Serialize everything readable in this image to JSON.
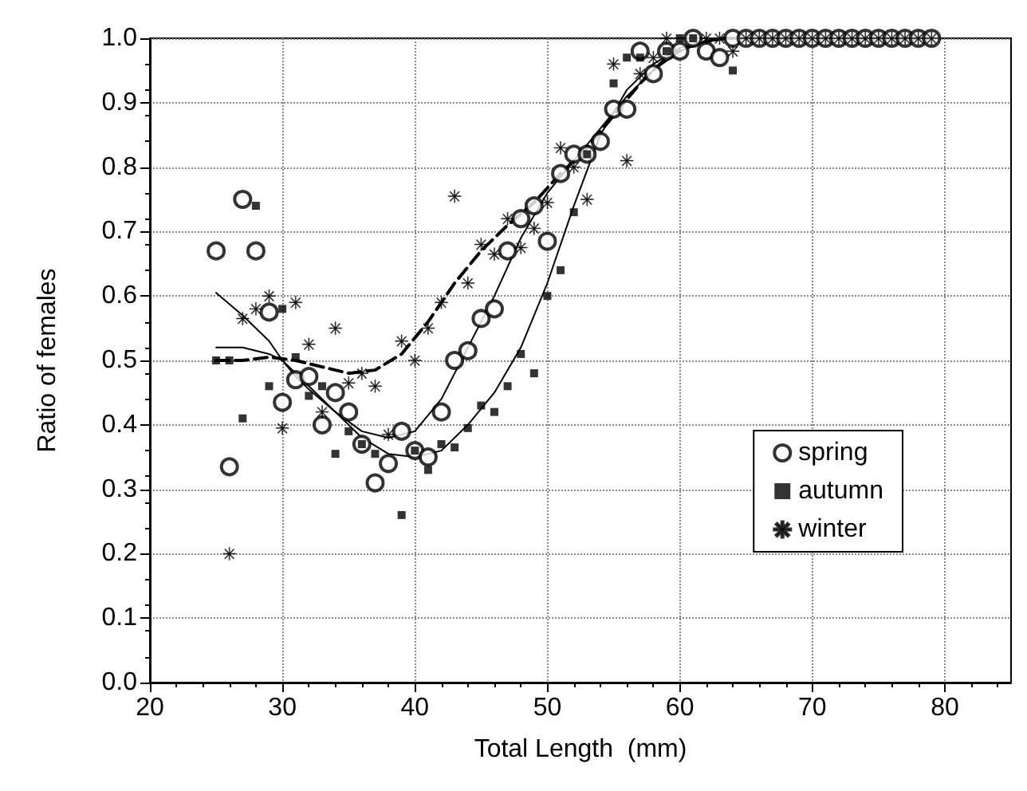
{
  "chart_data": {
    "type": "scatter",
    "xlabel": "Total Length  (mm)",
    "ylabel": "Ratio of females",
    "xlim": [
      20,
      85
    ],
    "ylim": [
      0,
      1.0
    ],
    "xticks": [
      20,
      30,
      40,
      50,
      60,
      70,
      80
    ],
    "yticks": [
      {
        "value": 0,
        "label": "0.0"
      },
      {
        "value": 0.1,
        "label": "0.1"
      },
      {
        "value": 0.2,
        "label": "0.2"
      },
      {
        "value": 0.3,
        "label": "0.3"
      },
      {
        "value": 0.4,
        "label": "0.4"
      },
      {
        "value": 0.5,
        "label": "0.5"
      },
      {
        "value": 0.6,
        "label": "0.6"
      },
      {
        "value": 0.7,
        "label": "0.7"
      },
      {
        "value": 0.8,
        "label": "0.8"
      },
      {
        "value": 0.9,
        "label": "0.9"
      },
      {
        "value": 1.0,
        "label": "1.0"
      }
    ],
    "grid": true,
    "legend": "right",
    "series": [
      {
        "name": "spring",
        "marker": "circle",
        "color": "#000000",
        "x": [
          25,
          26,
          27,
          28,
          29,
          30,
          31,
          32,
          33,
          34,
          35,
          36,
          37,
          38,
          39,
          40,
          41,
          42,
          43,
          44,
          45,
          46,
          47,
          48,
          49,
          50,
          51,
          52,
          53,
          54,
          55,
          56,
          57,
          58,
          59,
          60,
          61,
          62,
          63,
          64,
          65,
          66,
          67,
          68,
          69,
          70,
          71,
          72,
          73,
          74,
          75,
          76,
          77,
          78,
          79
        ],
        "values": [
          0.67,
          0.335,
          0.75,
          0.67,
          0.575,
          0.435,
          0.47,
          0.475,
          0.4,
          0.45,
          0.42,
          0.37,
          0.31,
          0.34,
          0.39,
          0.36,
          0.35,
          0.42,
          0.5,
          0.515,
          0.565,
          0.58,
          0.67,
          0.72,
          0.74,
          0.685,
          0.79,
          0.82,
          0.82,
          0.84,
          0.89,
          0.89,
          0.98,
          0.945,
          0.98,
          0.98,
          1.0,
          0.98,
          0.97,
          1.0,
          1.0,
          1.0,
          1.0,
          1.0,
          1.0,
          1.0,
          1.0,
          1.0,
          1.0,
          1.0,
          1.0,
          1.0,
          1.0,
          1.0,
          1.0
        ]
      },
      {
        "name": "autumn",
        "marker": "square",
        "color": "#000000",
        "x": [
          25,
          26,
          27,
          28,
          29,
          30,
          31,
          32,
          33,
          34,
          35,
          36,
          37,
          39,
          40,
          41,
          42,
          43,
          44,
          45,
          46,
          47,
          48,
          49,
          50,
          51,
          52,
          53,
          55,
          56,
          57,
          59,
          60,
          61,
          64
        ],
        "values": [
          0.5,
          0.5,
          0.41,
          0.74,
          0.46,
          0.58,
          0.505,
          0.445,
          0.46,
          0.355,
          0.39,
          0.37,
          0.355,
          0.26,
          0.36,
          0.33,
          0.37,
          0.365,
          0.395,
          0.43,
          0.42,
          0.46,
          0.51,
          0.48,
          0.6,
          0.64,
          0.73,
          0.82,
          0.93,
          0.97,
          0.97,
          0.98,
          1.0,
          1.0,
          0.95
        ]
      },
      {
        "name": "winter",
        "marker": "star",
        "color": "#000000",
        "x": [
          26,
          27,
          28,
          29,
          30,
          31,
          32,
          33,
          34,
          35,
          36,
          37,
          38,
          39,
          40,
          41,
          42,
          43,
          44,
          45,
          46,
          47,
          48,
          49,
          50,
          51,
          52,
          53,
          55,
          56,
          57,
          58,
          59,
          62,
          63,
          64,
          65,
          66,
          67,
          68,
          69,
          70,
          71,
          72,
          73,
          74,
          75,
          76,
          77,
          78,
          79
        ],
        "values": [
          0.2,
          0.565,
          0.58,
          0.6,
          0.395,
          0.59,
          0.525,
          0.42,
          0.55,
          0.465,
          0.48,
          0.46,
          0.385,
          0.53,
          0.5,
          0.55,
          0.59,
          0.755,
          0.62,
          0.68,
          0.665,
          0.72,
          0.675,
          0.705,
          0.745,
          0.83,
          0.8,
          0.75,
          0.96,
          0.81,
          0.945,
          0.97,
          1.0,
          1.0,
          1.0,
          0.98,
          1.0,
          1.0,
          1.0,
          1.0,
          1.0,
          1.0,
          1.0,
          1.0,
          1.0,
          1.0,
          1.0,
          1.0,
          1.0,
          1.0,
          1.0
        ]
      },
      {
        "type": "line",
        "line_style": "solid",
        "color": "#000000",
        "x": [
          25,
          27,
          29,
          30,
          31,
          32,
          34,
          36,
          38,
          40,
          42,
          44,
          46,
          48,
          50,
          52,
          54,
          56,
          58,
          60,
          62,
          64,
          79
        ],
        "values": [
          0.605,
          0.57,
          0.53,
          0.5,
          0.475,
          0.455,
          0.42,
          0.39,
          0.38,
          0.39,
          0.44,
          0.52,
          0.6,
          0.69,
          0.76,
          0.81,
          0.86,
          0.91,
          0.95,
          0.98,
          0.995,
          1.0,
          1.0
        ]
      },
      {
        "type": "line",
        "line_style": "solid",
        "color": "#000000",
        "x": [
          25,
          27,
          29,
          30,
          32,
          34,
          36,
          38,
          40,
          42,
          44,
          46,
          48,
          50,
          52,
          54,
          56,
          58,
          60,
          62,
          64,
          79
        ],
        "values": [
          0.52,
          0.52,
          0.51,
          0.5,
          0.46,
          0.42,
          0.38,
          0.355,
          0.35,
          0.36,
          0.4,
          0.45,
          0.52,
          0.62,
          0.74,
          0.85,
          0.92,
          0.96,
          0.985,
          0.995,
          1.0,
          1.0
        ]
      },
      {
        "type": "line",
        "line_style": "dashed",
        "color": "#000000",
        "x": [
          25,
          27,
          29,
          31,
          33,
          35,
          37,
          39,
          41,
          43,
          45,
          47,
          49,
          51,
          53,
          55,
          57,
          59,
          61,
          63,
          79
        ],
        "values": [
          0.5,
          0.5,
          0.505,
          0.5,
          0.49,
          0.48,
          0.485,
          0.51,
          0.56,
          0.62,
          0.67,
          0.71,
          0.745,
          0.79,
          0.83,
          0.88,
          0.93,
          0.97,
          0.99,
          1.0,
          1.0
        ]
      }
    ]
  }
}
